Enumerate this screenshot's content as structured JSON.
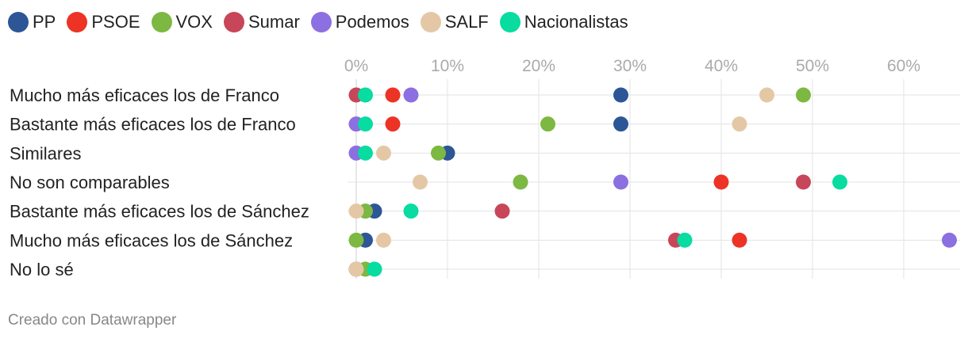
{
  "chart_data": {
    "type": "scatter",
    "x_ticks": [
      "0%",
      "10%",
      "20%",
      "30%",
      "40%",
      "50%",
      "60%"
    ],
    "x_tick_values": [
      0,
      10,
      20,
      30,
      40,
      50,
      60
    ],
    "xlim": [
      0,
      66
    ],
    "grid": true,
    "legend_position": "top-left",
    "categories": [
      "Mucho más eficaces los de Franco",
      "Bastante más eficaces los de Franco",
      "Similares",
      "No son comparables",
      "Bastante más eficaces los de Sánchez",
      "Mucho más eficaces los de Sánchez",
      "No lo sé"
    ],
    "series": [
      {
        "name": "PP",
        "color": "#2c5696",
        "values": [
          29,
          29,
          10,
          null,
          2,
          1,
          0
        ]
      },
      {
        "name": "PSOE",
        "color": "#ec3325",
        "values": [
          4,
          4,
          null,
          40,
          null,
          42,
          null
        ]
      },
      {
        "name": "VOX",
        "color": "#7cb842",
        "values": [
          49,
          21,
          9,
          18,
          1,
          0,
          1
        ]
      },
      {
        "name": "Sumar",
        "color": "#c7465a",
        "values": [
          0,
          null,
          null,
          49,
          16,
          35,
          null
        ]
      },
      {
        "name": "Podemos",
        "color": "#8c6fe1",
        "values": [
          6,
          0,
          0,
          29,
          null,
          65,
          null
        ]
      },
      {
        "name": "SALF",
        "color": "#e4c8a6",
        "values": [
          45,
          42,
          3,
          7,
          0,
          3,
          0
        ]
      },
      {
        "name": "Nacionalistas",
        "color": "#08dca0",
        "values": [
          1,
          1,
          1,
          53,
          6,
          36,
          2
        ]
      }
    ]
  },
  "footer": {
    "credit": "Creado con Datawrapper"
  }
}
